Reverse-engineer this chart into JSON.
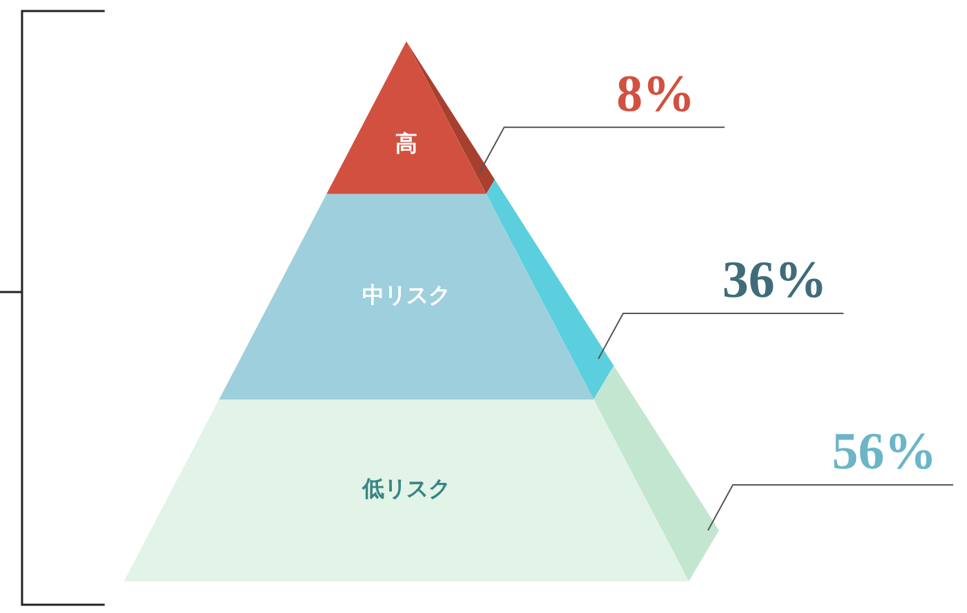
{
  "chart_data": {
    "type": "other",
    "categories": [
      "高",
      "中リスク",
      "低リスク"
    ],
    "values": [
      8,
      36,
      56
    ],
    "value_labels": [
      "8%",
      "36%",
      "56%"
    ],
    "colors": [
      "#d2503f",
      "#9dcfdc",
      "#e2f3e8"
    ]
  }
}
